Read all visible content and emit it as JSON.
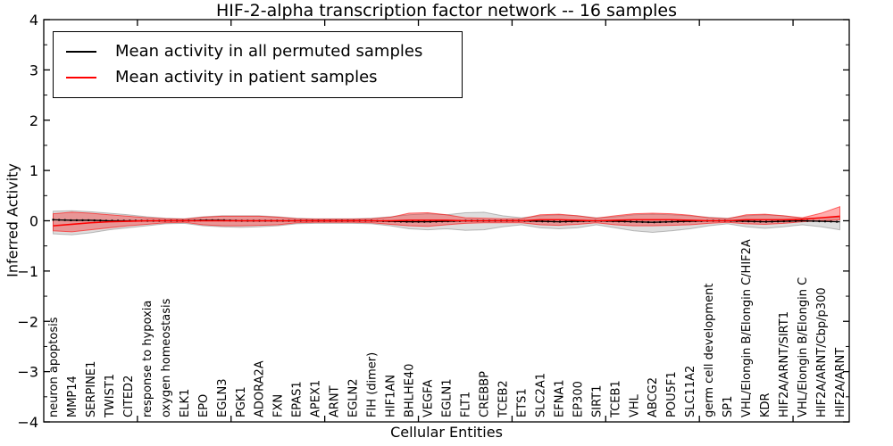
{
  "chart_data": {
    "type": "line",
    "title": "HIF-2-alpha transcription factor network -- 16 samples",
    "xlabel": "Cellular Entities",
    "ylabel": "Inferred Activity",
    "ylim": [
      -4,
      4
    ],
    "yticks": [
      -4,
      -3,
      -2,
      -1,
      0,
      1,
      2,
      3,
      4
    ],
    "y_minor_tick_step": 0.5,
    "x_major_ticks": [
      5,
      10,
      15,
      20,
      25,
      30,
      35,
      40
    ],
    "xlim": [
      0,
      43
    ],
    "grid": false,
    "legend_position": "upper left",
    "colors": {
      "permuted": "#000000",
      "patient": "#ff0000",
      "permuted_band": "#000000",
      "patient_band": "#ff0000"
    },
    "categories": [
      "neuron apoptosis",
      "MMP14",
      "SERPINE1",
      "TWIST1",
      "CITED2",
      "response to hypoxia",
      "oxygen homeostasis",
      "ELK1",
      "EPO",
      "EGLN3",
      "PGK1",
      "ADORA2A",
      "FXN",
      "EPAS1",
      "APEX1",
      "ARNT",
      "EGLN2",
      "FIH (dimer)",
      "HIF1AN",
      "BHLHE40",
      "VEGFA",
      "EGLN1",
      "FLT1",
      "CREBBP",
      "TCEB2",
      "ETS1",
      "SLC2A1",
      "EFNA1",
      "EP300",
      "SIRT1",
      "TCEB1",
      "VHL",
      "ABCG2",
      "POU5F1",
      "SLC11A2",
      "germ cell development",
      "SP1",
      "VHL/Elongin B/Elongin C/HIF2A",
      "KDR",
      "HIF2A/ARNT/SIRT1",
      "VHL/Elongin B/Elongin C",
      "HIF2A/ARNT/Cbp/p300",
      "HIF2A/ARNT"
    ],
    "series": [
      {
        "name": "Mean activity in all permuted samples",
        "color": "#000000",
        "values": [
          0.02,
          0.01,
          0.01,
          0,
          0,
          0,
          0,
          0,
          0.01,
          0.01,
          0,
          0,
          0,
          0,
          0,
          0,
          0,
          0,
          -0.01,
          -0.02,
          -0.02,
          -0.01,
          0,
          0,
          0,
          0,
          -0.01,
          -0.02,
          -0.01,
          0,
          -0.01,
          -0.02,
          -0.03,
          -0.02,
          -0.01,
          0,
          0,
          -0.01,
          -0.02,
          -0.01,
          0,
          -0.01,
          -0.02
        ]
      },
      {
        "name": "Mean activity in patient samples",
        "color": "#ff0000",
        "values": [
          -0.1,
          -0.07,
          -0.04,
          -0.02,
          -0.01,
          0,
          0,
          0,
          0,
          0,
          0,
          0,
          0,
          0,
          0,
          0,
          0,
          0,
          0,
          0.01,
          0.01,
          0.01,
          0,
          0,
          0,
          0,
          0.02,
          0.02,
          0.01,
          0,
          0.01,
          0.02,
          0.02,
          0.02,
          0.01,
          0,
          0,
          0.02,
          0.02,
          0.02,
          0.03,
          0.06,
          0.09
        ]
      }
    ],
    "bands": [
      {
        "name": "permuted samples range",
        "color": "#000000",
        "fill_opacity": 0.13,
        "upper": [
          0.19,
          0.2,
          0.18,
          0.15,
          0.12,
          0.08,
          0.05,
          0.04,
          0.08,
          0.1,
          0.1,
          0.1,
          0.08,
          0.05,
          0.04,
          0.04,
          0.04,
          0.05,
          0.08,
          0.12,
          0.14,
          0.12,
          0.16,
          0.17,
          0.1,
          0.06,
          0.1,
          0.12,
          0.1,
          0.06,
          0.08,
          0.12,
          0.13,
          0.12,
          0.1,
          0.07,
          0.05,
          0.1,
          0.12,
          0.1,
          0.05,
          0.06,
          0.07
        ],
        "lower": [
          -0.26,
          -0.28,
          -0.24,
          -0.18,
          -0.14,
          -0.1,
          -0.06,
          -0.05,
          -0.1,
          -0.12,
          -0.13,
          -0.12,
          -0.1,
          -0.06,
          -0.05,
          -0.05,
          -0.05,
          -0.06,
          -0.1,
          -0.16,
          -0.18,
          -0.16,
          -0.19,
          -0.18,
          -0.12,
          -0.08,
          -0.14,
          -0.16,
          -0.14,
          -0.08,
          -0.14,
          -0.2,
          -0.23,
          -0.2,
          -0.16,
          -0.1,
          -0.06,
          -0.12,
          -0.15,
          -0.12,
          -0.08,
          -0.12,
          -0.18
        ]
      },
      {
        "name": "patient samples range",
        "color": "#ff0000",
        "fill_opacity": 0.32,
        "upper": [
          0.14,
          0.17,
          0.15,
          0.12,
          0.09,
          0.06,
          0.04,
          0.03,
          0.07,
          0.09,
          0.09,
          0.09,
          0.07,
          0.04,
          0.03,
          0.03,
          0.03,
          0.04,
          0.07,
          0.15,
          0.16,
          0.12,
          0.06,
          0.05,
          0.04,
          0.04,
          0.12,
          0.13,
          0.1,
          0.05,
          0.1,
          0.14,
          0.15,
          0.14,
          0.11,
          0.06,
          0.04,
          0.12,
          0.13,
          0.1,
          0.06,
          0.15,
          0.28
        ],
        "lower": [
          -0.2,
          -0.22,
          -0.18,
          -0.14,
          -0.1,
          -0.07,
          -0.04,
          -0.03,
          -0.08,
          -0.1,
          -0.1,
          -0.09,
          -0.08,
          -0.04,
          -0.03,
          -0.03,
          -0.03,
          -0.04,
          -0.07,
          -0.1,
          -0.11,
          -0.08,
          -0.05,
          -0.04,
          -0.04,
          -0.04,
          -0.08,
          -0.09,
          -0.07,
          -0.04,
          -0.08,
          -0.1,
          -0.1,
          -0.09,
          -0.08,
          -0.05,
          -0.03,
          -0.06,
          -0.07,
          -0.05,
          -0.02,
          0,
          0.02
        ]
      }
    ]
  }
}
